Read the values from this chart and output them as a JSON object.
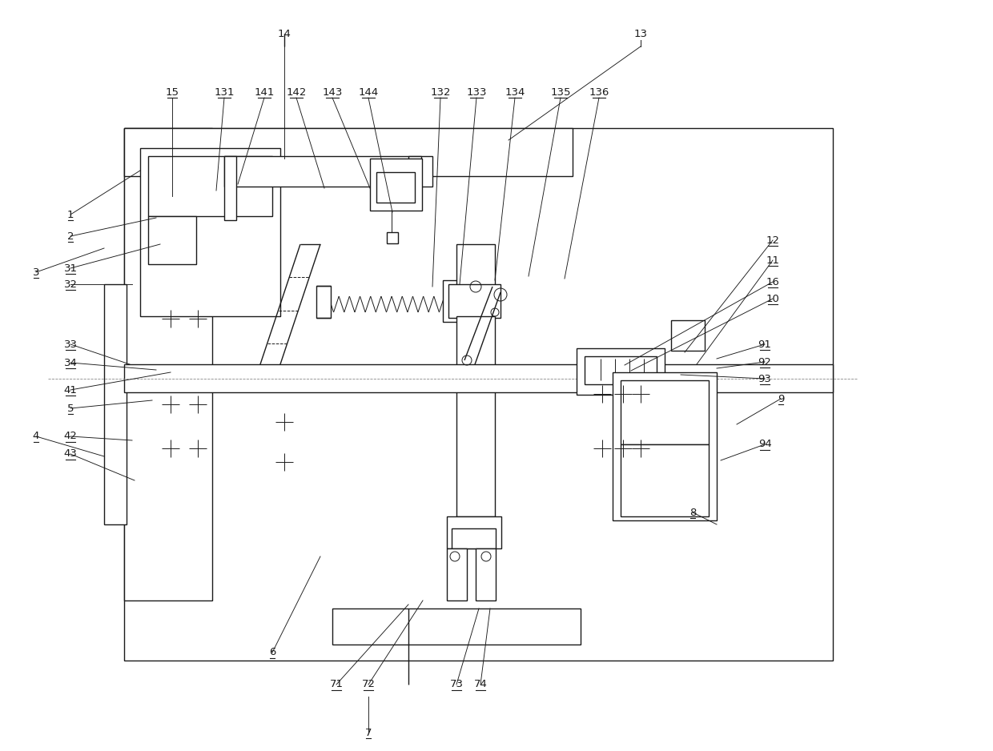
{
  "bg_color": "#ffffff",
  "line_color": "#1a1a1a",
  "lw": 1.0,
  "tlw": 0.7,
  "llw": 0.65,
  "figsize": [
    12.4,
    9.38
  ],
  "dpi": 100,
  "font_size": 9.5
}
